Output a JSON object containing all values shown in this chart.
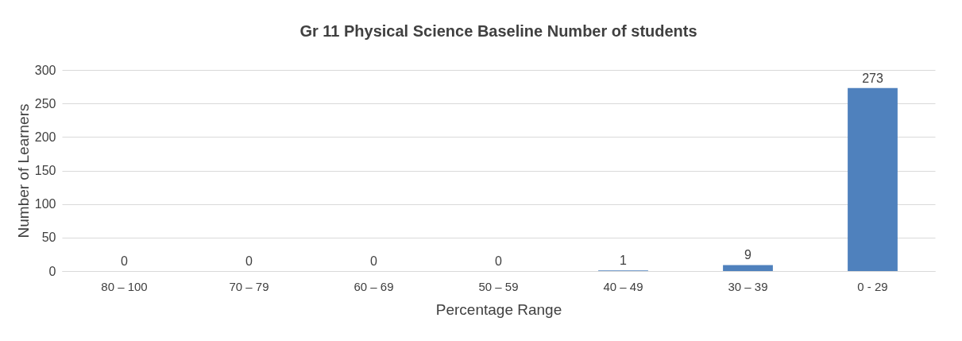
{
  "chart_data": {
    "type": "bar",
    "title": "Gr 11 Physical Science Baseline Number of students",
    "xlabel": "Percentage Range",
    "ylabel": "Number of Learners",
    "categories": [
      "80 – 100",
      "70 – 79",
      "60 – 69",
      "50 – 59",
      "40 – 49",
      "30 – 39",
      "0 - 29"
    ],
    "values": [
      0,
      0,
      0,
      0,
      1,
      9,
      273
    ],
    "color": "#4f81bd",
    "ylim": [
      0,
      300
    ],
    "yticks": [
      0,
      50,
      100,
      150,
      200,
      250,
      300
    ],
    "grid": "y",
    "data_labels": true
  }
}
